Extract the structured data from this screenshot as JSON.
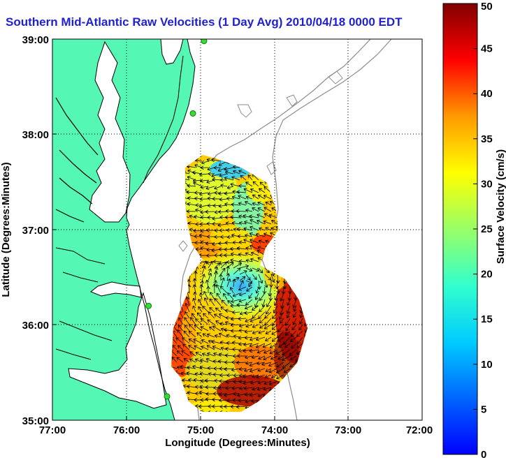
{
  "title": "Southern Mid-Atlantic Raw Velocities (1 Day Avg) 2010/04/18 0000 EDT",
  "map": {
    "xlabel": "Longitude (Degrees:Minutes)",
    "ylabel": "Latitude (Degrees:Minutes)",
    "lon_range": [
      -77,
      -72
    ],
    "lat_range": [
      35,
      39
    ],
    "x_ticks": [
      "77:00",
      "76:00",
      "75:00",
      "74:00",
      "73:00",
      "72:00"
    ],
    "y_ticks": [
      "39:00",
      "38:00",
      "37:00",
      "36:00",
      "35:00"
    ],
    "grid": "dotted",
    "land_color": "#55f7b5",
    "water_color": "#ffffff",
    "coastline_color": "#000000",
    "bathymetry_color": "#8c8c8c",
    "station_color": "#33dd33"
  },
  "colorbar": {
    "label": "Surface Velocity (cm/s)",
    "range": [
      0,
      50
    ],
    "ticks": [
      "0",
      "5",
      "10",
      "15",
      "20",
      "25",
      "30",
      "35",
      "40",
      "45",
      "50"
    ],
    "colormap": "jet"
  },
  "chart_data": {
    "type": "heatmap",
    "title": "Southern Mid-Atlantic Raw Velocities (1 Day Avg) 2010/04/18 0000 EDT",
    "xlabel": "Longitude (Degrees:Minutes)",
    "ylabel": "Latitude (Degrees:Minutes)",
    "xlim": [
      -77,
      -72
    ],
    "ylim": [
      35,
      39
    ],
    "color_range": [
      0,
      50
    ],
    "units": "cm/s",
    "stations": [
      {
        "lon": -74.95,
        "lat": 38.98
      },
      {
        "lon": -75.1,
        "lat": 38.22
      },
      {
        "lon": -75.7,
        "lat": 36.2
      },
      {
        "lon": -75.45,
        "lat": 35.25
      }
    ],
    "speed_samples": [
      {
        "lon": -74.9,
        "lat": 37.6,
        "speed": 22
      },
      {
        "lon": -74.7,
        "lat": 37.65,
        "speed": 12
      },
      {
        "lon": -74.4,
        "lat": 37.5,
        "speed": 28
      },
      {
        "lon": -74.6,
        "lat": 37.3,
        "speed": 24
      },
      {
        "lon": -74.5,
        "lat": 37.0,
        "speed": 13
      },
      {
        "lon": -74.3,
        "lat": 37.0,
        "speed": 30
      },
      {
        "lon": -74.9,
        "lat": 37.0,
        "speed": 27
      },
      {
        "lon": -74.9,
        "lat": 36.7,
        "speed": 38
      },
      {
        "lon": -74.2,
        "lat": 36.75,
        "speed": 42
      },
      {
        "lon": -74.8,
        "lat": 36.45,
        "speed": 30
      },
      {
        "lon": -74.45,
        "lat": 36.4,
        "speed": 8
      },
      {
        "lon": -74.1,
        "lat": 36.3,
        "speed": 20
      },
      {
        "lon": -73.85,
        "lat": 36.1,
        "speed": 47
      },
      {
        "lon": -75.2,
        "lat": 36.2,
        "speed": 44
      },
      {
        "lon": -75.0,
        "lat": 36.0,
        "speed": 27
      },
      {
        "lon": -74.7,
        "lat": 35.9,
        "speed": 18
      },
      {
        "lon": -74.4,
        "lat": 35.8,
        "speed": 28
      },
      {
        "lon": -74.05,
        "lat": 35.75,
        "speed": 35
      },
      {
        "lon": -75.25,
        "lat": 35.6,
        "speed": 46
      },
      {
        "lon": -75.0,
        "lat": 35.45,
        "speed": 35
      },
      {
        "lon": -74.7,
        "lat": 35.4,
        "speed": 25
      },
      {
        "lon": -74.4,
        "lat": 35.35,
        "speed": 47
      },
      {
        "lon": -74.2,
        "lat": 35.5,
        "speed": 45
      },
      {
        "lon": -74.9,
        "lat": 35.15,
        "speed": 30
      }
    ]
  }
}
